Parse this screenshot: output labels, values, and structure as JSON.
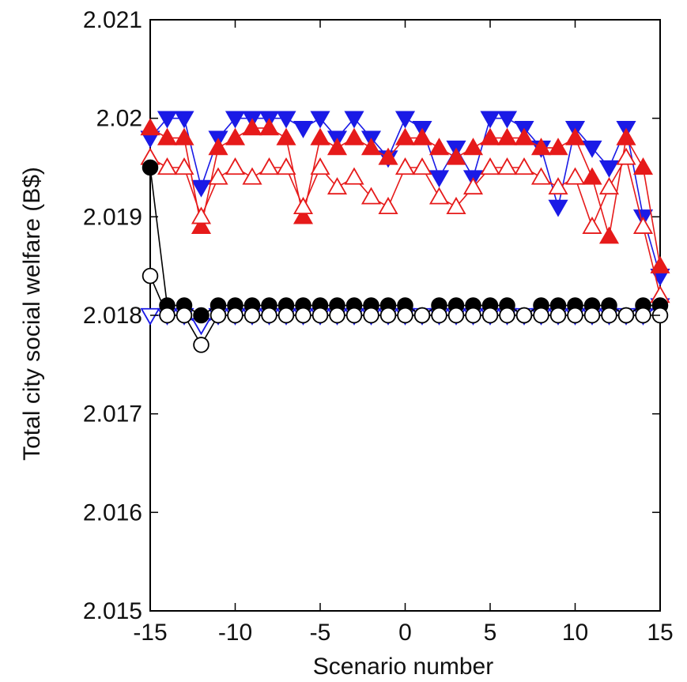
{
  "chart_data": {
    "type": "line",
    "title": "",
    "xlabel": "Scenario number",
    "ylabel": "Total city social welfare (B$)",
    "xlim": [
      -15,
      15
    ],
    "ylim": [
      2.015,
      2.021
    ],
    "xticks": [
      -15,
      -10,
      -5,
      0,
      5,
      10,
      15
    ],
    "xtick_labels": [
      "-15",
      "-10",
      "-5",
      "0",
      "5",
      "10",
      "15"
    ],
    "yticks": [
      2.015,
      2.016,
      2.017,
      2.018,
      2.019,
      2.02,
      2.021
    ],
    "ytick_labels": [
      "2.015",
      "2.016",
      "2.017",
      "2.018",
      "2.019",
      "2.02",
      "2.021"
    ],
    "grid": false,
    "legend": "none",
    "x": [
      -15,
      -14,
      -13,
      -12,
      -11,
      -10,
      -9,
      -8,
      -7,
      -6,
      -5,
      -4,
      -3,
      -2,
      -1,
      0,
      1,
      2,
      3,
      4,
      5,
      6,
      7,
      8,
      9,
      10,
      11,
      12,
      13,
      14,
      15
    ],
    "series": [
      {
        "marker": "triangle-down-filled",
        "color": "#1a1ae6",
        "values": [
          2.0198,
          2.02,
          2.02,
          2.0193,
          2.0198,
          2.02,
          2.02,
          2.02,
          2.02,
          2.0199,
          2.02,
          2.0198,
          2.02,
          2.0198,
          2.0196,
          2.02,
          2.0199,
          2.0194,
          2.0197,
          2.0194,
          2.02,
          2.02,
          2.0199,
          2.0197,
          2.0191,
          2.0199,
          2.0197,
          2.0195,
          2.0199,
          2.019,
          2.0184
        ]
      },
      {
        "marker": "triangle-down-open",
        "color": "#1a1ae6",
        "values": [
          2.018,
          2.018,
          2.018,
          2.0179,
          2.018,
          2.018,
          2.018,
          2.018,
          2.018,
          2.018,
          2.018,
          2.018,
          2.018,
          2.018,
          2.018,
          2.018,
          2.018,
          2.018,
          2.018,
          2.018,
          2.018,
          2.018,
          2.018,
          2.018,
          2.018,
          2.018,
          2.018,
          2.018,
          2.018,
          2.018,
          2.0181
        ]
      },
      {
        "marker": "triangle-up-filled",
        "color": "#e61a1a",
        "values": [
          2.0199,
          2.0198,
          2.0198,
          2.0189,
          2.0197,
          2.0198,
          2.0199,
          2.0199,
          2.0198,
          2.019,
          2.0198,
          2.0197,
          2.0198,
          2.0197,
          2.0196,
          2.0198,
          2.0198,
          2.0197,
          2.0196,
          2.0197,
          2.0198,
          2.0198,
          2.0198,
          2.0197,
          2.0197,
          2.0198,
          2.0194,
          2.0188,
          2.0198,
          2.0195,
          2.0185
        ]
      },
      {
        "marker": "triangle-up-open",
        "color": "#e61a1a",
        "values": [
          2.0196,
          2.0195,
          2.0195,
          2.019,
          2.0194,
          2.0195,
          2.0194,
          2.0195,
          2.0195,
          2.0191,
          2.0195,
          2.0193,
          2.0194,
          2.0192,
          2.0191,
          2.0195,
          2.0195,
          2.0192,
          2.0191,
          2.0193,
          2.0195,
          2.0195,
          2.0195,
          2.0194,
          2.0193,
          2.0194,
          2.0189,
          2.0193,
          2.0196,
          2.0189,
          2.0182
        ]
      },
      {
        "marker": "circle-filled",
        "color": "#000000",
        "values": [
          2.0195,
          2.0181,
          2.0181,
          2.018,
          2.0181,
          2.0181,
          2.0181,
          2.0181,
          2.0181,
          2.0181,
          2.0181,
          2.0181,
          2.0181,
          2.0181,
          2.0181,
          2.0181,
          2.018,
          2.0181,
          2.0181,
          2.0181,
          2.0181,
          2.0181,
          2.018,
          2.0181,
          2.0181,
          2.0181,
          2.0181,
          2.0181,
          2.018,
          2.0181,
          2.0181
        ]
      },
      {
        "marker": "circle-open",
        "color": "#000000",
        "values": [
          2.0184,
          2.018,
          2.018,
          2.0177,
          2.018,
          2.018,
          2.018,
          2.018,
          2.018,
          2.018,
          2.018,
          2.018,
          2.018,
          2.018,
          2.018,
          2.018,
          2.018,
          2.018,
          2.018,
          2.018,
          2.018,
          2.018,
          2.018,
          2.018,
          2.018,
          2.018,
          2.018,
          2.018,
          2.018,
          2.018,
          2.018
        ]
      }
    ]
  }
}
